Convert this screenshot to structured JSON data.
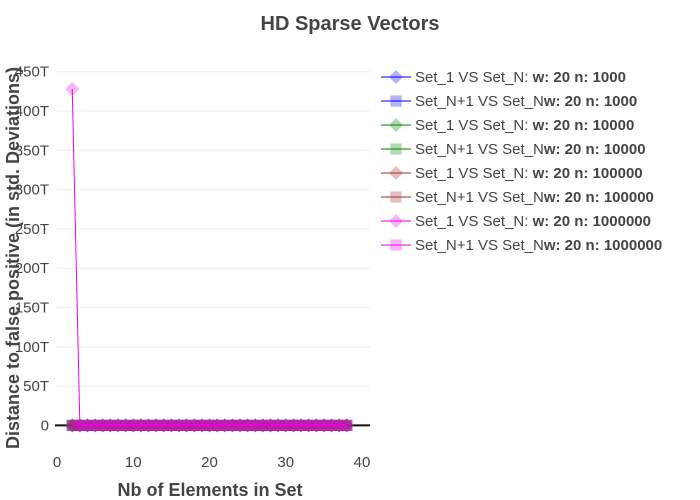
{
  "chart_data": {
    "type": "line",
    "title": "HD Sparse Vectors",
    "xlabel": "Nb of Elements in Set",
    "ylabel": "Distance to false positive (in std. Deviations)",
    "xlim": [
      0,
      40
    ],
    "ylim": [
      -30,
      470
    ],
    "xticks": [
      0,
      10,
      20,
      30,
      40
    ],
    "xtick_labels": [
      "0",
      "10",
      "20",
      "30",
      "40"
    ],
    "yticks": [
      0,
      50,
      100,
      150,
      200,
      250,
      300,
      350,
      400,
      450
    ],
    "ytick_labels": [
      "0",
      "50T",
      "100T",
      "150T",
      "200T",
      "250T",
      "300T",
      "350T",
      "400T",
      "450T"
    ],
    "y_unit": "T",
    "grid": true,
    "legend_position": "right",
    "x": [
      2,
      3,
      4,
      5,
      6,
      7,
      8,
      9,
      10,
      11,
      12,
      13,
      14,
      15,
      16,
      17,
      18,
      19,
      20,
      21,
      22,
      23,
      24,
      25,
      26,
      27,
      28,
      29,
      30,
      31,
      32,
      33,
      34,
      35,
      36,
      37,
      38
    ],
    "series": [
      {
        "legend_prefix": "Set_1 VS Set_N: ",
        "legend_suffix": "w: 20 n: 1000",
        "color": "#0000ff",
        "marker": "diamond",
        "values": [
          0,
          0,
          0,
          0,
          0,
          0,
          0,
          0,
          0,
          0,
          0,
          0,
          0,
          0,
          0,
          0,
          0,
          0,
          0,
          0,
          0,
          0,
          0,
          0,
          0,
          0,
          0,
          0,
          0,
          0,
          0,
          0,
          0,
          0,
          0,
          0,
          0
        ]
      },
      {
        "legend_prefix": "Set_N+1 VS Set_N",
        "legend_suffix": "w: 20 n: 1000",
        "color": "#0000ff",
        "marker": "square",
        "values": [
          0,
          0,
          0,
          0,
          0,
          0,
          0,
          0,
          0,
          0,
          0,
          0,
          0,
          0,
          0,
          0,
          0,
          0,
          0,
          0,
          0,
          0,
          0,
          0,
          0,
          0,
          0,
          0,
          0,
          0,
          0,
          0,
          0,
          0,
          0,
          0,
          0
        ]
      },
      {
        "legend_prefix": "Set_1 VS Set_N: ",
        "legend_suffix": "w: 20 n: 10000",
        "color": "#008000",
        "marker": "diamond",
        "values": [
          0,
          0,
          0,
          0,
          0,
          0,
          0,
          0,
          0,
          0,
          0,
          0,
          0,
          0,
          0,
          0,
          0,
          0,
          0,
          0,
          0,
          0,
          0,
          0,
          0,
          0,
          0,
          0,
          0,
          0,
          0,
          0,
          0,
          0,
          0,
          0,
          0
        ]
      },
      {
        "legend_prefix": "Set_N+1 VS Set_N",
        "legend_suffix": "w: 20 n: 10000",
        "color": "#008000",
        "marker": "square",
        "values": [
          0,
          0,
          0,
          0,
          0,
          0,
          0,
          0,
          0,
          0,
          0,
          0,
          0,
          0,
          0,
          0,
          0,
          0,
          0,
          0,
          0,
          0,
          0,
          0,
          0,
          0,
          0,
          0,
          0,
          0,
          0,
          0,
          0,
          0,
          0,
          0,
          0
        ]
      },
      {
        "legend_prefix": "Set_1 VS Set_N: ",
        "legend_suffix": "w: 20 n: 100000",
        "color": "#a52a2a",
        "marker": "diamond",
        "values": [
          0,
          0,
          0,
          0,
          0,
          0,
          0,
          0,
          0,
          0,
          0,
          0,
          0,
          0,
          0,
          0,
          0,
          0,
          0,
          0,
          0,
          0,
          0,
          0,
          0,
          0,
          0,
          0,
          0,
          0,
          0,
          0,
          0,
          0,
          0,
          0,
          0
        ]
      },
      {
        "legend_prefix": "Set_N+1 VS Set_N",
        "legend_suffix": "w: 20 n: 100000",
        "color": "#a52a2a",
        "marker": "square",
        "values": [
          0,
          0,
          0,
          0,
          0,
          0,
          0,
          0,
          0,
          0,
          0,
          0,
          0,
          0,
          0,
          0,
          0,
          0,
          0,
          0,
          0,
          0,
          0,
          0,
          0,
          0,
          0,
          0,
          0,
          0,
          0,
          0,
          0,
          0,
          0,
          0,
          0
        ]
      },
      {
        "legend_prefix": "Set_1 VS Set_N: ",
        "legend_suffix": "w: 20 n: 1000000",
        "color": "#ee00ee",
        "marker": "diamond",
        "values": [
          428,
          0,
          0,
          0,
          0,
          0,
          0,
          0,
          0,
          0,
          0,
          0,
          0,
          0,
          0,
          0,
          0,
          0,
          0,
          0,
          0,
          0,
          0,
          0,
          0,
          0,
          0,
          0,
          0,
          0,
          0,
          0,
          0,
          0,
          0,
          0,
          0
        ]
      },
      {
        "legend_prefix": "Set_N+1 VS Set_N",
        "legend_suffix": "w: 20 n: 1000000",
        "color": "#ee00ee",
        "marker": "square",
        "values": [
          0,
          0,
          0,
          0,
          0,
          0,
          0,
          0,
          0,
          0,
          0,
          0,
          0,
          0,
          0,
          0,
          0,
          0,
          0,
          0,
          0,
          0,
          0,
          0,
          0,
          0,
          0,
          0,
          0,
          0,
          0,
          0,
          0,
          0,
          0,
          0,
          0
        ]
      }
    ]
  }
}
